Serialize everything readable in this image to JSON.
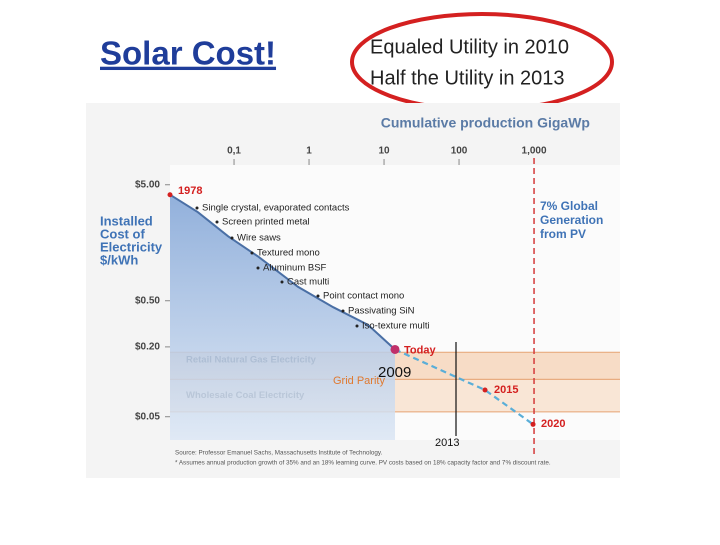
{
  "slide": {
    "title": "Solar Cost!",
    "callout": [
      "Equaled Utility in 2010",
      "Half  the Utility in 2013"
    ],
    "marker_a": "2009",
    "marker_b": "2013"
  },
  "chart_data": {
    "type": "line",
    "title": "Cumulative production GigaWp",
    "ylabel": [
      "Installed",
      "Cost of",
      "Electricity",
      "$/kWh"
    ],
    "xlog": true,
    "ylog": true,
    "xlim": [
      0.014,
      14000
    ],
    "ylim": [
      0.0315,
      7.4
    ],
    "xticks": [
      {
        "value": 0.1,
        "label": "0,1"
      },
      1,
      10,
      100,
      {
        "value": 1000,
        "label": "1,000"
      }
    ],
    "yticks": [
      {
        "value": 5,
        "label": "$5.00"
      },
      {
        "value": 0.5,
        "label": "$0.50"
      },
      {
        "value": 0.2,
        "label": "$0.20"
      },
      {
        "value": 0.05,
        "label": "$0.05"
      }
    ],
    "series": [
      {
        "color": "#4a6fa5",
        "x": [
          0.014,
          0.033,
          0.083,
          0.21,
          0.71,
          2.1,
          6.1,
          14
        ],
        "values": [
          4.1,
          2.9,
          1.8,
          1.2,
          0.66,
          0.44,
          0.31,
          0.19
        ]
      },
      {
        "color": "#5aaed8",
        "x": [
          14,
          222,
          970
        ],
        "values": [
          0.19,
          0.085,
          0.043
        ]
      }
    ],
    "bands": [
      {
        "label": "Retail Natural Gas Electricity",
        "range": [
          0.105,
          0.18
        ]
      },
      {
        "label": "Wholesale Coal Electricity",
        "range": [
          0.055,
          0.105
        ]
      }
    ],
    "start_label": "1978",
    "milestones": [
      "Single crystal, evaporated contacts",
      "Screen printed metal",
      "Wire saws",
      "Textured mono",
      "Aluminum BSF",
      "Cast multi",
      "Point contact mono",
      "Passivating SiN",
      "Iso-texture multi"
    ],
    "point_labels": [
      "Today",
      "2015",
      "2020"
    ],
    "grid_parity": "Grid Parity",
    "target_note": [
      "7% Global",
      "Generation",
      "from PV"
    ],
    "source": [
      "Source: Professor Emanuel Sachs, Massachusetts Institute of Technology.",
      "* Assumes annual production growth of 35% and an 18% learning curve. PV costs based on 18% capacity factor and 7% discount rate."
    ]
  }
}
